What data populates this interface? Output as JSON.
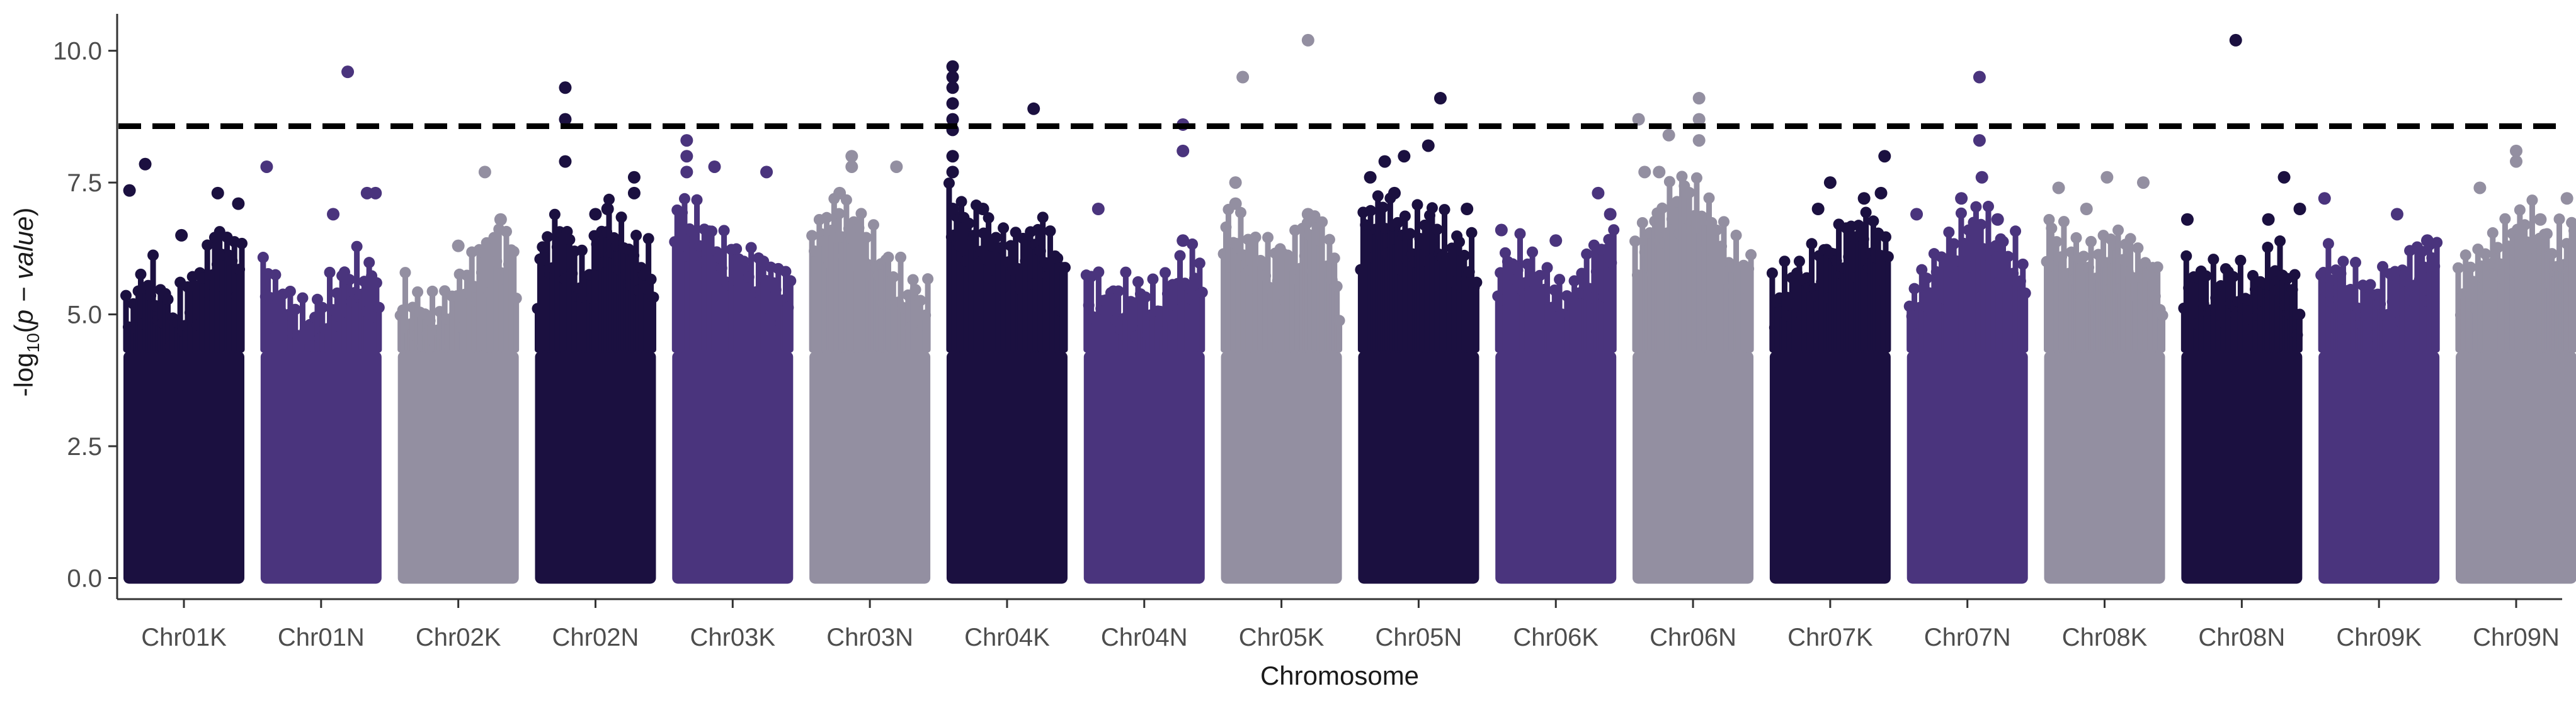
{
  "chart_data": {
    "type": "scatter",
    "title": "",
    "xlabel": "Chromosome",
    "ylabel": {
      "prefix": "-log",
      "sub": "10",
      "open": "(",
      "italic": "p − value",
      "close": ")"
    },
    "ylim": [
      -0.4,
      10.7
    ],
    "yticks": [
      "0.0",
      "2.5",
      "5.0",
      "7.5",
      "10.0"
    ],
    "grid": false,
    "legend": "none",
    "threshold": {
      "value": 8.57,
      "style": "dashed",
      "color": "#000000"
    },
    "palette": [
      "#1b1040",
      "#4a347d",
      "#938fa1"
    ],
    "categories": [
      "Chr01K",
      "Chr01N",
      "Chr02K",
      "Chr02N",
      "Chr03K",
      "Chr03N",
      "Chr04K",
      "Chr04N",
      "Chr05K",
      "Chr05N",
      "Chr06K",
      "Chr06N",
      "Chr07K",
      "Chr07N",
      "Chr08K",
      "Chr08N",
      "Chr09K",
      "Chr09N"
    ],
    "series": [
      {
        "category": "Chr01K",
        "color": "#1b1040",
        "peaks": [
          [
            0.05,
            7.35
          ],
          [
            0.18,
            7.85
          ],
          [
            0.48,
            6.5
          ],
          [
            0.78,
            7.3
          ],
          [
            0.95,
            7.1
          ]
        ],
        "hi": [
          4.7,
          5.6,
          4.8,
          5.4,
          6.2,
          5.9
        ]
      },
      {
        "category": "Chr01N",
        "color": "#4a347d",
        "peaks": [
          [
            0.05,
            7.8
          ],
          [
            0.72,
            9.6
          ],
          [
            0.88,
            7.3
          ],
          [
            0.95,
            7.3
          ],
          [
            0.6,
            6.9
          ]
        ],
        "hi": [
          5.6,
          5.0,
          4.6,
          5.2,
          5.6,
          5.4
        ]
      },
      {
        "category": "Chr02K",
        "color": "#938fa1",
        "peaks": [
          [
            0.72,
            7.7
          ],
          [
            0.5,
            6.3
          ],
          [
            0.85,
            6.8
          ]
        ],
        "hi": [
          5.2,
          4.8,
          4.9,
          5.6,
          6.2,
          6.0
        ]
      },
      {
        "category": "Chr02N",
        "color": "#1b1040",
        "peaks": [
          [
            0.25,
            9.3
          ],
          [
            0.25,
            8.7
          ],
          [
            0.25,
            7.9
          ],
          [
            0.82,
            7.6
          ],
          [
            0.82,
            7.3
          ],
          [
            0.5,
            6.9
          ],
          [
            0.6,
            7.0
          ]
        ],
        "hi": [
          5.8,
          6.5,
          5.5,
          6.6,
          6.0,
          5.7
        ]
      },
      {
        "category": "Chr03K",
        "color": "#4a347d",
        "peaks": [
          [
            0.12,
            8.3
          ],
          [
            0.12,
            8.0
          ],
          [
            0.12,
            7.7
          ],
          [
            0.35,
            7.8
          ],
          [
            0.78,
            7.7
          ]
        ],
        "hi": [
          6.8,
          6.5,
          6.0,
          5.8,
          5.6,
          5.3
        ]
      },
      {
        "category": "Chr03N",
        "color": "#938fa1",
        "peaks": [
          [
            0.35,
            8.0
          ],
          [
            0.35,
            7.8
          ],
          [
            0.72,
            7.8
          ],
          [
            0.25,
            7.3
          ]
        ],
        "hi": [
          6.2,
          6.7,
          6.5,
          5.8,
          5.3,
          5.0
        ]
      },
      {
        "category": "Chr04K",
        "color": "#1b1040",
        "peaks": [
          [
            0.05,
            9.7
          ],
          [
            0.05,
            9.5
          ],
          [
            0.05,
            9.3
          ],
          [
            0.05,
            9.0
          ],
          [
            0.05,
            8.7
          ],
          [
            0.05,
            8.5
          ],
          [
            0.05,
            8.0
          ],
          [
            0.05,
            7.7
          ],
          [
            0.05,
            7.0
          ],
          [
            0.72,
            8.9
          ],
          [
            0.3,
            7.0
          ]
        ],
        "hi": [
          6.8,
          6.5,
          6.2,
          6.0,
          6.4,
          5.6
        ]
      },
      {
        "category": "Chr04N",
        "color": "#4a347d",
        "peaks": [
          [
            0.12,
            7.0
          ],
          [
            0.82,
            8.6
          ],
          [
            0.82,
            8.1
          ],
          [
            0.82,
            6.4
          ]
        ],
        "hi": [
          5.4,
          5.1,
          5.2,
          5.0,
          5.5,
          5.8
        ]
      },
      {
        "category": "Chr05K",
        "color": "#938fa1",
        "peaks": [
          [
            0.18,
            9.5
          ],
          [
            0.72,
            10.2
          ],
          [
            0.12,
            7.5
          ],
          [
            0.12,
            7.1
          ],
          [
            0.72,
            6.9
          ]
        ],
        "hi": [
          6.5,
          6.2,
          5.8,
          6.0,
          6.6,
          5.5
        ]
      },
      {
        "category": "Chr05N",
        "color": "#1b1040",
        "peaks": [
          [
            0.1,
            7.6
          ],
          [
            0.22,
            7.9
          ],
          [
            0.38,
            8.0
          ],
          [
            0.58,
            8.2
          ],
          [
            0.68,
            9.1
          ],
          [
            0.9,
            7.0
          ],
          [
            0.3,
            7.3
          ]
        ],
        "hi": [
          6.5,
          6.8,
          6.3,
          6.6,
          6.1,
          5.8
        ]
      },
      {
        "category": "Chr06K",
        "color": "#4a347d",
        "peaks": [
          [
            0.05,
            6.6
          ],
          [
            0.85,
            7.3
          ],
          [
            0.95,
            6.9
          ],
          [
            0.5,
            6.4
          ]
        ],
        "hi": [
          5.6,
          5.9,
          5.4,
          5.0,
          5.8,
          6.2
        ]
      },
      {
        "category": "Chr06N",
        "color": "#938fa1",
        "peaks": [
          [
            0.05,
            8.7
          ],
          [
            0.55,
            9.1
          ],
          [
            0.55,
            8.7
          ],
          [
            0.55,
            8.3
          ],
          [
            0.3,
            8.4
          ],
          [
            0.1,
            7.7
          ],
          [
            0.22,
            7.7
          ]
        ],
        "hi": [
          6.0,
          6.6,
          7.2,
          6.8,
          6.0,
          5.6
        ]
      },
      {
        "category": "Chr07K",
        "color": "#1b1040",
        "peaks": [
          [
            0.5,
            7.5
          ],
          [
            0.95,
            8.0
          ],
          [
            0.92,
            7.3
          ],
          [
            0.78,
            7.2
          ],
          [
            0.4,
            7.0
          ]
        ],
        "hi": [
          5.2,
          5.5,
          5.8,
          6.2,
          6.5,
          6.0
        ]
      },
      {
        "category": "Chr07N",
        "color": "#4a347d",
        "peaks": [
          [
            0.08,
            6.9
          ],
          [
            0.6,
            9.5
          ],
          [
            0.6,
            8.3
          ],
          [
            0.62,
            7.6
          ],
          [
            0.45,
            7.2
          ],
          [
            0.75,
            6.8
          ]
        ],
        "hi": [
          5.0,
          5.6,
          6.2,
          6.6,
          6.0,
          5.8
        ]
      },
      {
        "category": "Chr08K",
        "color": "#938fa1",
        "peaks": [
          [
            0.12,
            7.4
          ],
          [
            0.52,
            7.6
          ],
          [
            0.82,
            7.5
          ],
          [
            0.35,
            7.0
          ]
        ],
        "hi": [
          6.4,
          6.0,
          5.8,
          6.2,
          5.8,
          5.4
        ]
      },
      {
        "category": "Chr08N",
        "color": "#1b1040",
        "peaks": [
          [
            0.45,
            10.2
          ],
          [
            0.85,
            7.6
          ],
          [
            0.05,
            6.8
          ],
          [
            0.98,
            7.0
          ],
          [
            0.72,
            6.8
          ]
        ],
        "hi": [
          5.6,
          5.4,
          5.5,
          5.2,
          5.9,
          5.0
        ]
      },
      {
        "category": "Chr09K",
        "color": "#4a347d",
        "peaks": [
          [
            0.05,
            7.2
          ],
          [
            0.65,
            6.9
          ],
          [
            0.9,
            6.4
          ]
        ],
        "hi": [
          5.8,
          5.5,
          5.2,
          5.4,
          5.8,
          6.0
        ]
      },
      {
        "category": "Chr09N",
        "color": "#938fa1",
        "peaks": [
          [
            0.5,
            8.1
          ],
          [
            0.5,
            7.9
          ],
          [
            0.92,
            7.2
          ],
          [
            0.2,
            7.4
          ],
          [
            0.7,
            6.8
          ]
        ],
        "hi": [
          5.5,
          5.8,
          6.2,
          6.6,
          6.0,
          6.3
        ]
      }
    ]
  }
}
